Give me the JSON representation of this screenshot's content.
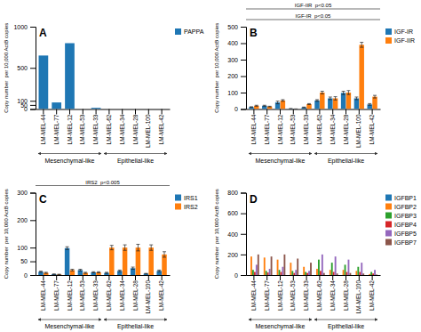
{
  "chart_data": [
    {
      "type": "bar",
      "title": "A",
      "y_label": "Copy number  per 10,000 ActB copies",
      "categories": [
        "LM-MEL-44",
        "LM-MEL-77",
        "LM-MEL-12",
        "LM-MEL-53",
        "LM-MEL-33",
        "LM-MEL-62",
        "LM-MEL-34",
        "LM-MEL-28",
        "LM-MEL-100",
        "LM-MEL-42"
      ],
      "series": [
        {
          "name": "PAPPA",
          "values": [
            650,
            80,
            800,
            0,
            15,
            0,
            0,
            0,
            0,
            0
          ]
        }
      ],
      "ylim": [
        0,
        1000
      ],
      "yticks": [
        0,
        50,
        100,
        500,
        1000
      ],
      "grid": false,
      "legend": "right",
      "annotations": [
        {
          "text": "Mesenchymal-like",
          "from": "LM-MEL-44",
          "to": "LM-MEL-33"
        },
        {
          "text": "Epithelial-like",
          "from": "LM-MEL-62",
          "to": "LM-MEL-42"
        }
      ]
    },
    {
      "type": "bar",
      "title": "B",
      "y_label": "Copy number  per 10,000 ActB copies",
      "categories": [
        "LM-MEL-44",
        "LM-MEL-77",
        "LM-MEL-12",
        "LM-MEL-53",
        "LM-MEL-33",
        "LM-MEL-62",
        "LM-MEL-34",
        "LM-MEL-28",
        "LM-MEL-100",
        "LM-MEL-42"
      ],
      "series": [
        {
          "name": "IGF-IR",
          "values": [
            12,
            20,
            40,
            2,
            10,
            52,
            65,
            98,
            65,
            28
          ],
          "errors": [
            2,
            3,
            8,
            1,
            2,
            5,
            8,
            10,
            8,
            5
          ]
        },
        {
          "name": "IGF-IIR",
          "values": [
            20,
            15,
            52,
            0,
            30,
            100,
            65,
            100,
            390,
            75
          ],
          "errors": [
            3,
            2,
            5,
            1,
            3,
            8,
            10,
            12,
            15,
            8
          ]
        }
      ],
      "ylim": [
        0,
        500
      ],
      "yticks": [
        0,
        100,
        200,
        300,
        400,
        500
      ],
      "grid": false,
      "legend": "right",
      "annotations": [
        {
          "text": "Mesenchymal-like",
          "from": "LM-MEL-44",
          "to": "LM-MEL-33"
        },
        {
          "text": "Epithelial-like",
          "from": "LM-MEL-62",
          "to": "LM-MEL-42"
        },
        {
          "text": "IGF-IR  p<0.05"
        },
        {
          "text": "IGF-IIR  p<0.05"
        }
      ]
    },
    {
      "type": "bar",
      "title": "C",
      "y_label": "Copy number  per 10,000 ActB copies",
      "categories": [
        "LM-MEL-44",
        "LM-MEL-77",
        "LM-MEL-12",
        "LM-MEL-53",
        "LM-MEL-33",
        "LM-MEL-62",
        "LM-MEL-34",
        "LM-MEL-28",
        "LM-MEL-100",
        "LM-MEL-42"
      ],
      "series": [
        {
          "name": "IRS1",
          "values": [
            12,
            3,
            98,
            18,
            10,
            8,
            15,
            25,
            5,
            15
          ],
          "errors": [
            2,
            1,
            5,
            3,
            2,
            2,
            3,
            4,
            1,
            3
          ]
        },
        {
          "name": "IRS2",
          "values": [
            8,
            2,
            18,
            8,
            10,
            100,
            100,
            100,
            100,
            75
          ],
          "errors": [
            2,
            1,
            3,
            2,
            2,
            8,
            10,
            12,
            10,
            10
          ]
        }
      ],
      "ylim": [
        0,
        300
      ],
      "yticks": [
        0,
        50,
        100,
        200,
        300
      ],
      "grid": false,
      "legend": "right",
      "annotations": [
        {
          "text": "Mesenchymal-like",
          "from": "LM-MEL-44",
          "to": "LM-MEL-33"
        },
        {
          "text": "Epithelial-like",
          "from": "LM-MEL-62",
          "to": "LM-MEL-42"
        },
        {
          "text": "IRS2  p<0.005"
        }
      ]
    },
    {
      "type": "bar",
      "title": "D",
      "y_label": "Copy number  per 10,000 ActB copies",
      "categories": [
        "LM-MEL-44",
        "LM-MEL-77",
        "LM-MEL-12",
        "LM-MEL-53",
        "LM-MEL-33",
        "LM-MEL-62",
        "LM-MEL-34",
        "LM-MEL-28",
        "LM-MEL-100",
        "LM-MEL-42"
      ],
      "series": [
        {
          "name": "IGFBP1",
          "values": [
            0,
            0,
            0,
            0,
            0,
            0,
            0,
            0,
            0,
            0
          ]
        },
        {
          "name": "IGFBP2",
          "values": [
            180,
            170,
            150,
            120,
            80,
            60,
            50,
            50,
            40,
            10
          ]
        },
        {
          "name": "IGFBP3",
          "values": [
            50,
            40,
            50,
            40,
            30,
            150,
            120,
            100,
            80,
            30
          ]
        },
        {
          "name": "IGFBP4",
          "values": [
            30,
            25,
            30,
            20,
            20,
            40,
            30,
            30,
            30,
            15
          ]
        },
        {
          "name": "IGFBP5",
          "values": [
            100,
            60,
            80,
            50,
            40,
            200,
            180,
            150,
            120,
            50
          ]
        },
        {
          "name": "IGFBP7",
          "values": [
            200,
            180,
            200,
            160,
            120,
            20,
            15,
            20,
            15,
            5
          ]
        }
      ],
      "ylim": [
        0,
        800
      ],
      "yticks": [
        0,
        200,
        400,
        600,
        800
      ],
      "grid": false,
      "legend": "right",
      "annotations": [
        {
          "text": "Mesenchymal-like",
          "from": "LM-MEL-44",
          "to": "LM-MEL-33"
        },
        {
          "text": "Epithelial-like",
          "from": "LM-MEL-62",
          "to": "LM-MEL-42"
        }
      ]
    }
  ]
}
